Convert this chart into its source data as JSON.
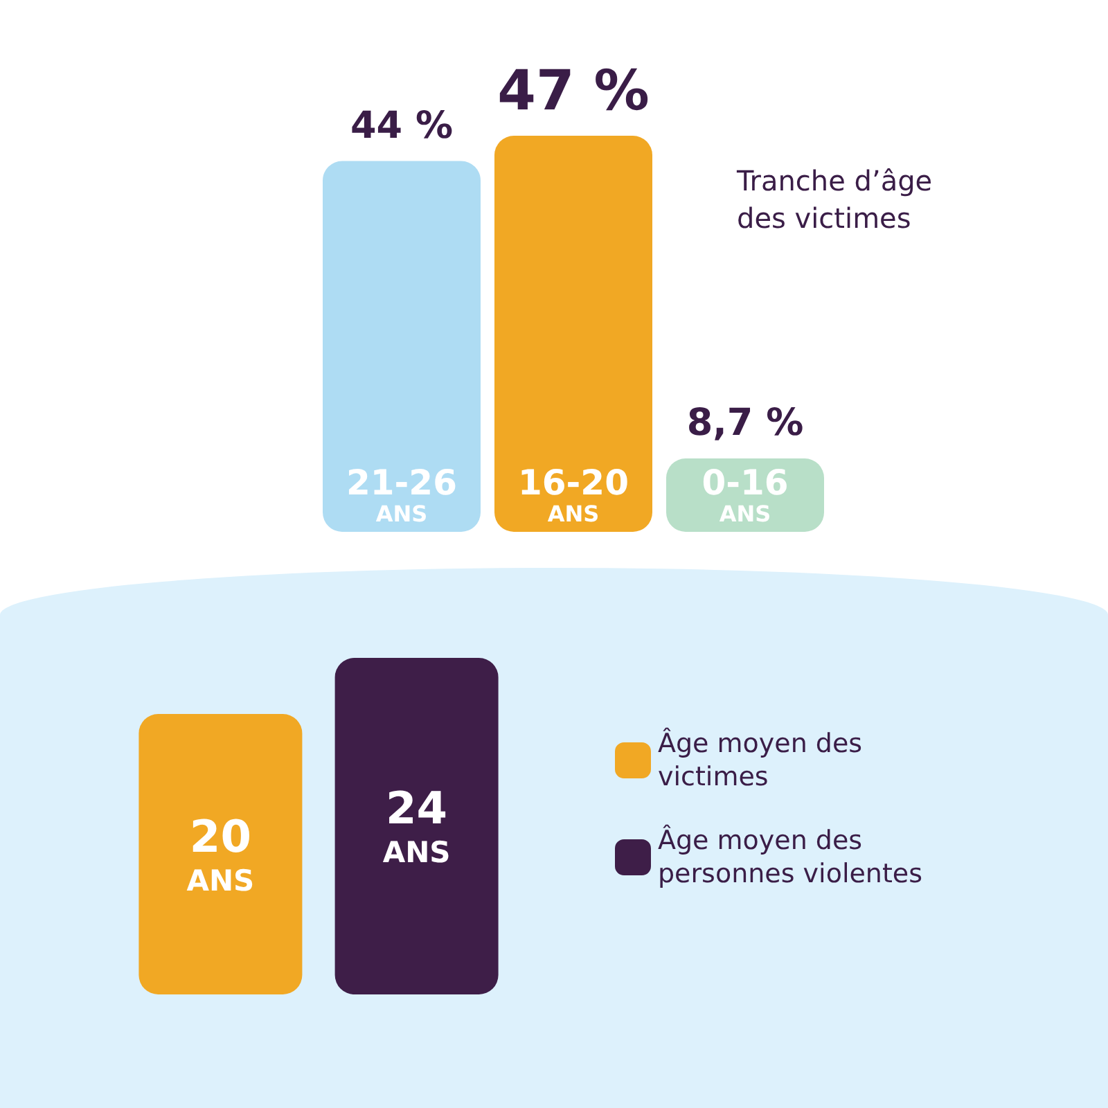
{
  "chart_data": [
    {
      "type": "bar",
      "title": "Tranche d’âge des victimes",
      "categories": [
        "21-26 ANS",
        "16-20 ANS",
        "0-16 ANS"
      ],
      "values": [
        44,
        47,
        8.7
      ],
      "value_labels": [
        "44 %",
        "47 %",
        "8,7 %"
      ],
      "colors": [
        "#aedcf3",
        "#f1a824",
        "#b8dfc8"
      ],
      "tick_labels": "x"
    },
    {
      "type": "bar",
      "categories": [
        null
      ],
      "series": [
        {
          "name": "Âge moyen des victimes",
          "color": "#f1a824",
          "values": [
            20
          ],
          "value_labels": [
            "20 ANS"
          ]
        },
        {
          "name": "Âge moyen des personnes violentes",
          "color": "#3e1e48",
          "values": [
            24
          ],
          "value_labels": [
            "24 ANS"
          ]
        }
      ],
      "legend": "right",
      "tick_labels": false
    }
  ]
}
